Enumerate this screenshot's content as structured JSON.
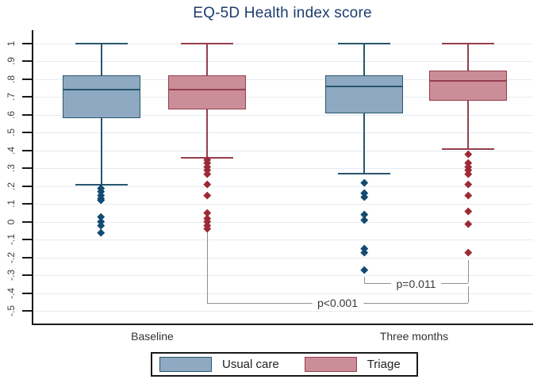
{
  "chart_data": {
    "type": "boxplot",
    "title": "EQ-5D Health index score",
    "xlabel": "",
    "ylabel": "",
    "ylim": [
      -0.5,
      1
    ],
    "grid": true,
    "ytick_labels": [
      "1",
      ".9",
      ".8",
      ".7",
      ".6",
      ".5",
      ".4",
      ".3",
      ".2",
      ".1",
      "0",
      "-.1",
      "-.2",
      "-.3",
      "-.4",
      "-.5"
    ],
    "ytick_values": [
      1,
      0.9,
      0.8,
      0.7,
      0.6,
      0.5,
      0.4,
      0.3,
      0.2,
      0.1,
      0,
      -0.1,
      -0.2,
      -0.3,
      -0.4,
      -0.5
    ],
    "groups": [
      "Baseline",
      "Three months"
    ],
    "series": [
      {
        "name": "Usual care",
        "fill": "#8fa9c2",
        "stroke": "#27566e",
        "outlier_color": "#124a72"
      },
      {
        "name": "Triage",
        "fill": "#cb8e99",
        "stroke": "#943f4c",
        "outlier_color": "#9c2a34"
      }
    ],
    "boxes": [
      {
        "group": "Baseline",
        "series": "Usual care",
        "whisker_high": 1.0,
        "q3": 0.82,
        "median": 0.74,
        "q1": 0.58,
        "whisker_low": 0.21,
        "outliers": [
          0.19,
          0.17,
          0.15,
          0.13,
          0.12,
          0.03,
          0.0,
          -0.02,
          -0.06
        ]
      },
      {
        "group": "Baseline",
        "series": "Triage",
        "whisker_high": 1.0,
        "q3": 0.82,
        "median": 0.74,
        "q1": 0.63,
        "whisker_low": 0.36,
        "outliers": [
          0.35,
          0.33,
          0.31,
          0.29,
          0.27,
          0.21,
          0.15,
          0.05,
          0.02,
          0.0,
          -0.02,
          -0.04
        ]
      },
      {
        "group": "Three months",
        "series": "Usual care",
        "whisker_high": 1.0,
        "q3": 0.82,
        "median": 0.76,
        "q1": 0.61,
        "whisker_low": 0.27,
        "outliers": [
          0.22,
          0.16,
          0.14,
          0.04,
          0.01,
          -0.15,
          -0.17,
          -0.27
        ]
      },
      {
        "group": "Three months",
        "series": "Triage",
        "whisker_high": 1.0,
        "q3": 0.85,
        "median": 0.79,
        "q1": 0.68,
        "whisker_low": 0.41,
        "outliers": [
          0.38,
          0.33,
          0.31,
          0.29,
          0.27,
          0.21,
          0.15,
          0.06,
          -0.01,
          -0.17
        ]
      }
    ],
    "annotations": [
      {
        "label": "p<0.001",
        "from": {
          "group": "Baseline",
          "series": "Triage",
          "hook_top": -0.06
        },
        "to": {
          "group": "Three months",
          "series": "Triage",
          "hook_top": -0.36
        },
        "bar_y": -0.455
      },
      {
        "label": "p=0.011",
        "from": {
          "group": "Three months",
          "series": "Usual care",
          "hook_top": -0.31
        },
        "to": {
          "group": "Three months",
          "series": "Triage",
          "hook_top": -0.215
        },
        "bar_y": -0.345
      }
    ],
    "legend": {
      "position": "bottom",
      "items": [
        "Usual care",
        "Triage"
      ]
    }
  }
}
